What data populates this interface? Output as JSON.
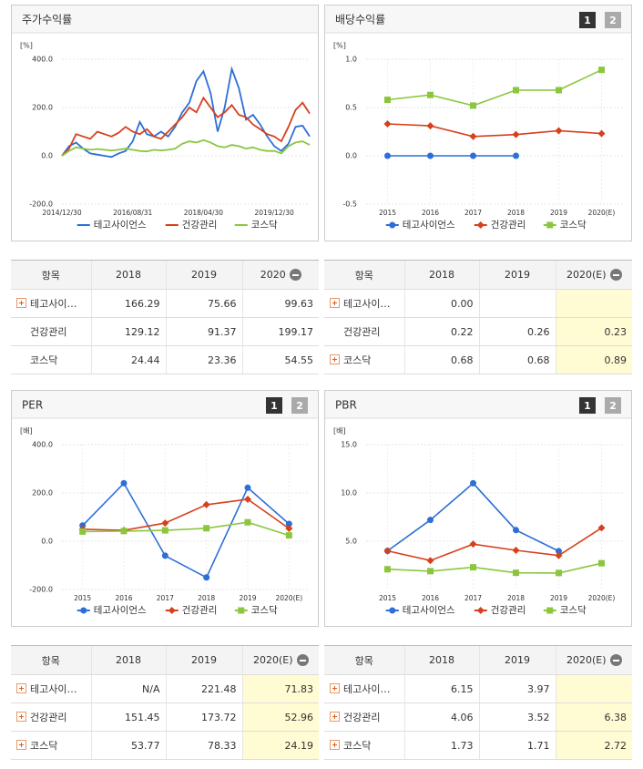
{
  "chart_data": [
    {
      "type": "line",
      "title": "주가수익률",
      "unit": "[%]",
      "markers": false,
      "categories": [
        "2014/12/30",
        null,
        null,
        null,
        null,
        null,
        null,
        null,
        null,
        null,
        "2016/08/31",
        null,
        null,
        null,
        null,
        null,
        null,
        null,
        null,
        null,
        "2018/04/30",
        null,
        null,
        null,
        null,
        null,
        null,
        null,
        null,
        null,
        "2019/12/30",
        null,
        null,
        null,
        null,
        null
      ],
      "series": [
        {
          "name": "테고사이언스",
          "color": "#2d6fd6",
          "values": [
            0,
            40,
            55,
            30,
            10,
            5,
            0,
            -5,
            10,
            20,
            60,
            140,
            90,
            80,
            100,
            80,
            120,
            180,
            220,
            310,
            350,
            260,
            100,
            200,
            360,
            280,
            150,
            170,
            130,
            80,
            40,
            20,
            50,
            120,
            125,
            80
          ]
        },
        {
          "name": "건강관리",
          "color": "#d6401c",
          "values": [
            0,
            30,
            90,
            80,
            70,
            100,
            90,
            80,
            95,
            120,
            100,
            90,
            110,
            80,
            70,
            100,
            130,
            160,
            200,
            180,
            240,
            200,
            160,
            180,
            210,
            170,
            160,
            130,
            110,
            90,
            80,
            60,
            120,
            190,
            220,
            175
          ]
        },
        {
          "name": "코스닥",
          "color": "#8cc63f",
          "values": [
            0,
            20,
            35,
            30,
            25,
            28,
            25,
            22,
            25,
            30,
            25,
            20,
            18,
            25,
            22,
            25,
            30,
            50,
            60,
            55,
            65,
            55,
            40,
            35,
            45,
            40,
            30,
            35,
            25,
            20,
            20,
            10,
            40,
            55,
            60,
            45
          ]
        }
      ],
      "ylim": [
        -200,
        400
      ],
      "yticks": [
        {
          "value": 400,
          "label": "400.0"
        },
        {
          "value": 200,
          "label": "200.0"
        },
        {
          "value": 0,
          "label": "0.0"
        },
        {
          "value": -200,
          "label": "-200.0"
        }
      ],
      "grid": true
    },
    {
      "type": "line",
      "title": "배당수익률",
      "unit": "[%]",
      "markers": true,
      "pages": [
        "1",
        "2"
      ],
      "categories": [
        "2015",
        "2016",
        "2017",
        "2018",
        "2019",
        "2020(E)"
      ],
      "series": [
        {
          "name": "테고사이언스",
          "color": "#2d6fd6",
          "marker": "circle",
          "values": [
            0,
            0,
            0,
            0,
            null,
            null
          ]
        },
        {
          "name": "건강관리",
          "color": "#d6401c",
          "marker": "diamond",
          "values": [
            0.33,
            0.31,
            0.2,
            0.22,
            0.26,
            0.23
          ]
        },
        {
          "name": "코스닥",
          "color": "#8cc63f",
          "marker": "square",
          "values": [
            0.58,
            0.63,
            0.52,
            0.68,
            0.68,
            0.89
          ]
        }
      ],
      "ylim": [
        -0.5,
        1.0
      ],
      "yticks": [
        {
          "value": 1,
          "label": "1.0"
        },
        0.5,
        {
          "value": 0,
          "label": "0.0"
        },
        -0.5
      ],
      "grid": true
    },
    {
      "type": "line",
      "title": "PER",
      "unit": "[배]",
      "markers": true,
      "pages": [
        "1",
        "2"
      ],
      "categories": [
        "2015",
        "2016",
        "2017",
        "2018",
        "2019",
        "2020(E)"
      ],
      "series": [
        {
          "name": "테고사이언스",
          "color": "#2d6fd6",
          "marker": "circle",
          "values": [
            65,
            240,
            -60,
            -150,
            221.48,
            71.83
          ]
        },
        {
          "name": "건강관리",
          "color": "#d6401c",
          "marker": "diamond",
          "values": [
            50,
            45,
            75,
            151.45,
            173.72,
            52.96
          ]
        },
        {
          "name": "코스닥",
          "color": "#8cc63f",
          "marker": "square",
          "values": [
            40,
            42,
            45,
            53.77,
            78.33,
            24.19
          ]
        }
      ],
      "ylim": [
        -200,
        400
      ],
      "yticks": [
        {
          "value": 400,
          "label": "400.0"
        },
        {
          "value": 200,
          "label": "200.0"
        },
        {
          "value": 0,
          "label": "0.0"
        },
        {
          "value": -200,
          "label": "-200.0"
        }
      ],
      "grid": true
    },
    {
      "type": "line",
      "title": "PBR",
      "unit": "[배]",
      "markers": true,
      "pages": [
        "1",
        "2"
      ],
      "categories": [
        "2015",
        "2016",
        "2017",
        "2018",
        "2019",
        "2020(E)"
      ],
      "series": [
        {
          "name": "테고사이언스",
          "color": "#2d6fd6",
          "marker": "circle",
          "values": [
            4.0,
            7.2,
            11.0,
            6.15,
            3.97,
            null
          ]
        },
        {
          "name": "건강관리",
          "color": "#d6401c",
          "marker": "diamond",
          "values": [
            4.0,
            3.0,
            4.7,
            4.06,
            3.52,
            6.38
          ]
        },
        {
          "name": "코스닥",
          "color": "#8cc63f",
          "marker": "square",
          "values": [
            2.1,
            1.9,
            2.3,
            1.73,
            1.71,
            2.72
          ]
        }
      ],
      "ylim": [
        0,
        15
      ],
      "yticks": [
        {
          "value": 15,
          "label": "15.0"
        },
        {
          "value": 10,
          "label": "10.0"
        },
        {
          "value": 5,
          "label": "5.0"
        }
      ],
      "grid": true
    }
  ],
  "tables": [
    {
      "header": [
        "항목",
        "2018",
        "2019",
        "2020"
      ],
      "highlight_last": false,
      "expandable": [
        true,
        false,
        false
      ],
      "rows": [
        {
          "cells": [
            "테고사이…",
            "166.29",
            "75.66",
            "99.63"
          ]
        },
        {
          "cells": [
            "건강관리",
            "129.12",
            "91.37",
            "199.17"
          ]
        },
        {
          "cells": [
            "코스닥",
            "24.44",
            "23.36",
            "54.55"
          ]
        }
      ]
    },
    {
      "header": [
        "항목",
        "2018",
        "2019",
        "2020(E)"
      ],
      "highlight_last": true,
      "expandable": [
        true,
        false,
        true
      ],
      "rows": [
        {
          "cells": [
            "테고사이…",
            "0.00",
            null,
            null
          ]
        },
        {
          "cells": [
            "건강관리",
            "0.22",
            "0.26",
            "0.23"
          ]
        },
        {
          "cells": [
            "코스닥",
            "0.68",
            "0.68",
            "0.89"
          ]
        }
      ]
    },
    {
      "header": [
        "항목",
        "2018",
        "2019",
        "2020(E)"
      ],
      "highlight_last": true,
      "expandable": [
        true,
        true,
        true
      ],
      "rows": [
        {
          "cells": [
            "테고사이…",
            "N/A",
            "221.48",
            "71.83"
          ]
        },
        {
          "cells": [
            "건강관리",
            "151.45",
            "173.72",
            "52.96"
          ]
        },
        {
          "cells": [
            "코스닥",
            "53.77",
            "78.33",
            "24.19"
          ]
        }
      ]
    },
    {
      "header": [
        "항목",
        "2018",
        "2019",
        "2020(E)"
      ],
      "highlight_last": true,
      "expandable": [
        true,
        true,
        true
      ],
      "rows": [
        {
          "cells": [
            "테고사이…",
            "6.15",
            "3.97",
            null
          ]
        },
        {
          "cells": [
            "건강관리",
            "4.06",
            "3.52",
            "6.38"
          ]
        },
        {
          "cells": [
            "코스닥",
            "1.73",
            "1.71",
            "2.72"
          ]
        }
      ]
    }
  ]
}
